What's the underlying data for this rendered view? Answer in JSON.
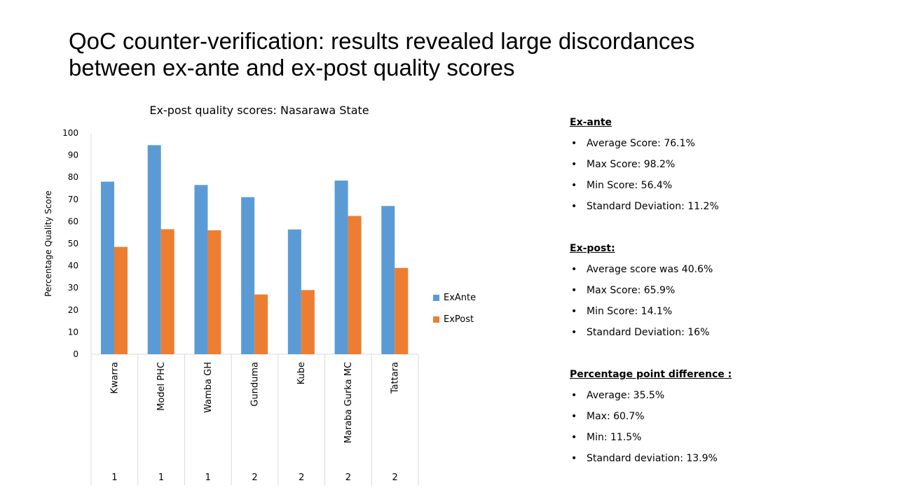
{
  "slide": {
    "title_line1": "QoC counter-verification: results revealed large discordances",
    "title_line2": "between ex-ante and ex-post quality scores"
  },
  "chart_data": {
    "type": "bar",
    "title": "Ex-post quality scores: Nasarawa State",
    "ylabel": "Percentage Quality Score",
    "xlabel": "",
    "ylim": [
      0,
      100
    ],
    "yticks": [
      0,
      10,
      20,
      30,
      40,
      50,
      60,
      70,
      80,
      90,
      100
    ],
    "grid": false,
    "legend": "right",
    "categories": [
      "Kwarra",
      "Model PHC",
      "Wamba GH",
      "Gunduma",
      "Kube",
      "Maraba Gurka MC",
      "Tattara"
    ],
    "groups": [
      "1",
      "1",
      "1",
      "2",
      "2",
      "2",
      "2"
    ],
    "series": [
      {
        "name": "ExAnte",
        "color": "#5b9bd5",
        "values": [
          78,
          94.5,
          76.5,
          71,
          56.4,
          78.5,
          67
        ]
      },
      {
        "name": "ExPost",
        "color": "#ed7d31",
        "values": [
          48.5,
          56.5,
          56,
          27,
          29,
          62.5,
          39
        ]
      }
    ]
  },
  "side": {
    "sections": [
      {
        "heading": "Ex-ante",
        "items": [
          "Average Score: 76.1%",
          "Max Score: 98.2%",
          "Min Score: 56.4%",
          "Standard Deviation: 11.2%"
        ]
      },
      {
        "heading": "Ex-post:",
        "items": [
          "Average score was 40.6%",
          "Max Score: 65.9%",
          "Min Score: 14.1%",
          "Standard Deviation: 16%"
        ]
      },
      {
        "heading": "Percentage point difference :",
        "items": [
          "Average: 35.5%",
          "Max: 60.7%",
          "Min: 11.5%",
          "Standard deviation: 13.9%"
        ]
      }
    ]
  }
}
